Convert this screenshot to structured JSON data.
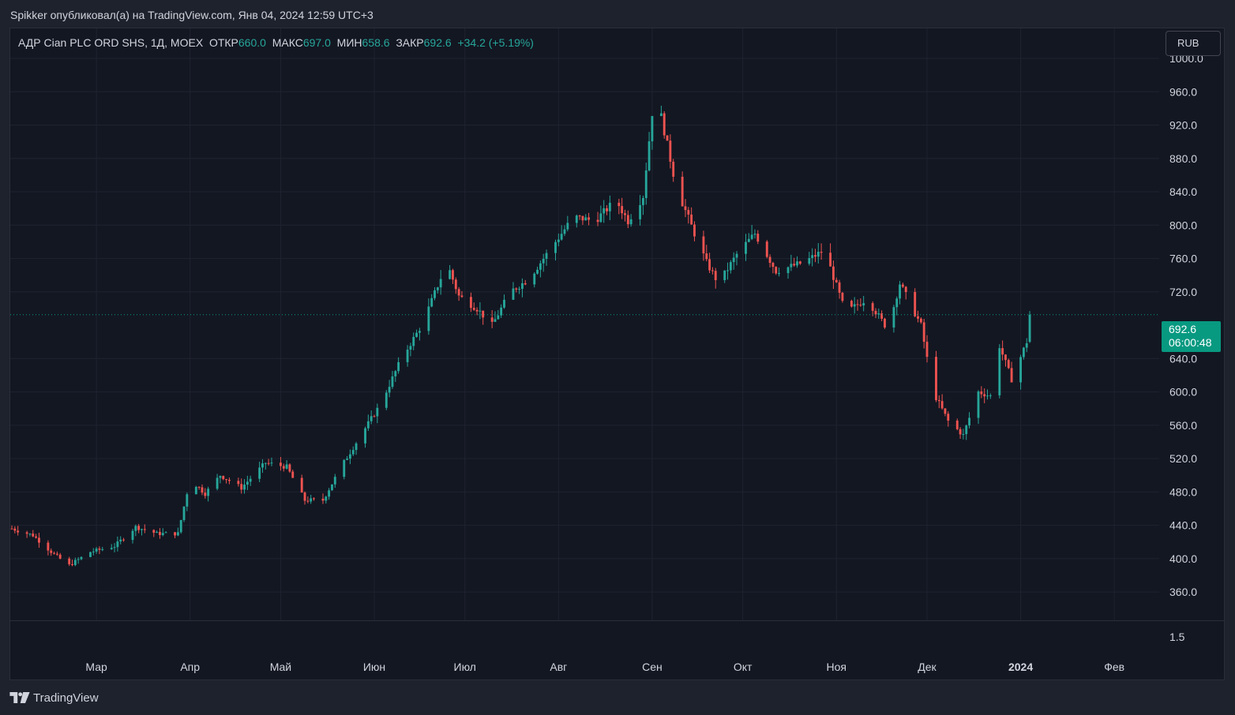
{
  "header": {
    "publish_text": "Spikker опубликовал(а) на TradingView.com, Янв 04, 2024 12:59 UTC+3"
  },
  "legend": {
    "symbol": "АДР Cian PLC ORD SHS, 1Д, MOEX",
    "open_label": "ОТКР",
    "open_value": "660.0",
    "high_label": "МАКС",
    "high_value": "697.0",
    "low_label": "МИН",
    "low_value": "658.6",
    "close_label": "ЗАКР",
    "close_value": "692.6",
    "change": "+34.2 (+5.19%)"
  },
  "currency_button": "RUB",
  "price_tag": {
    "price": "692.6",
    "countdown": "06:00:48"
  },
  "footer": {
    "brand": "TradingView",
    "logo_icon": "tradingview-logo-icon"
  },
  "colors": {
    "up": "#26a69a",
    "down": "#ef5350",
    "background": "#131722",
    "grid": "#1f2330",
    "text": "#d1d4dc",
    "tag": "#089981"
  },
  "chart_data": {
    "type": "candlestick",
    "title": "АДР Cian PLC ORD SHS, 1Д, MOEX",
    "ylim": [
      326,
      1036
    ],
    "y_ticks": [
      "1000.0",
      "960.0",
      "920.0",
      "880.0",
      "840.0",
      "800.0",
      "760.0",
      "720.0",
      "640.0",
      "600.0",
      "560.0",
      "520.0",
      "480.0",
      "440.0",
      "400.0",
      "360.0"
    ],
    "y_tick_values": [
      1000,
      960,
      920,
      880,
      840,
      800,
      760,
      720,
      640,
      600,
      560,
      520,
      480,
      440,
      400,
      360
    ],
    "x_ticks": [
      "Мар",
      "Апр",
      "Май",
      "Июн",
      "Июл",
      "Авг",
      "Сен",
      "Окт",
      "Ноя",
      "Дек",
      "2024",
      "Фев"
    ],
    "x_tick_dates": [
      "2023-03-01",
      "2023-04-01",
      "2023-05-01",
      "2023-06-01",
      "2023-07-01",
      "2023-08-01",
      "2023-09-01",
      "2023-10-01",
      "2023-11-01",
      "2023-12-01",
      "2024-01-01",
      "2024-02-01"
    ],
    "x_range": [
      "2023-02-01",
      "2024-02-19"
    ],
    "last_price": 692.6,
    "volume_pane_tick": "1.5",
    "grid": true,
    "keypoints": [
      [
        "2023-02-01",
        436
      ],
      [
        "2023-02-08",
        428
      ],
      [
        "2023-02-15",
        405
      ],
      [
        "2023-02-20",
        392
      ],
      [
        "2023-02-27",
        408
      ],
      [
        "2023-03-07",
        415
      ],
      [
        "2023-03-14",
        438
      ],
      [
        "2023-03-21",
        430
      ],
      [
        "2023-03-28",
        430
      ],
      [
        "2023-04-01",
        495
      ],
      [
        "2023-04-06",
        478
      ],
      [
        "2023-04-11",
        500
      ],
      [
        "2023-04-18",
        485
      ],
      [
        "2023-04-26",
        515
      ],
      [
        "2023-05-03",
        510
      ],
      [
        "2023-05-09",
        470
      ],
      [
        "2023-05-15",
        470
      ],
      [
        "2023-05-21",
        510
      ],
      [
        "2023-05-27",
        545
      ],
      [
        "2023-06-03",
        585
      ],
      [
        "2023-06-10",
        640
      ],
      [
        "2023-06-17",
        682
      ],
      [
        "2023-06-25",
        755
      ],
      [
        "2023-06-29",
        715
      ],
      [
        "2023-07-05",
        700
      ],
      [
        "2023-07-10",
        680
      ],
      [
        "2023-07-16",
        720
      ],
      [
        "2023-07-22",
        735
      ],
      [
        "2023-07-30",
        775
      ],
      [
        "2023-08-06",
        810
      ],
      [
        "2023-08-13",
        805
      ],
      [
        "2023-08-20",
        830
      ],
      [
        "2023-08-24",
        805
      ],
      [
        "2023-08-29",
        835
      ],
      [
        "2023-09-01",
        935
      ],
      [
        "2023-09-04",
        930
      ],
      [
        "2023-09-09",
        845
      ],
      [
        "2023-09-15",
        790
      ],
      [
        "2023-09-19",
        755
      ],
      [
        "2023-09-23",
        730
      ],
      [
        "2023-09-29",
        765
      ],
      [
        "2023-10-05",
        790
      ],
      [
        "2023-10-12",
        745
      ],
      [
        "2023-10-21",
        755
      ],
      [
        "2023-10-28",
        770
      ],
      [
        "2023-11-04",
        695
      ],
      [
        "2023-11-11",
        712
      ],
      [
        "2023-11-18",
        675
      ],
      [
        "2023-11-22",
        730
      ],
      [
        "2023-11-29",
        680
      ],
      [
        "2023-12-03",
        600
      ],
      [
        "2023-12-08",
        565
      ],
      [
        "2023-12-13",
        548
      ],
      [
        "2023-12-18",
        600
      ],
      [
        "2023-12-22",
        595
      ],
      [
        "2023-12-25",
        655
      ],
      [
        "2023-12-29",
        615
      ],
      [
        "2024-01-03",
        660
      ]
    ],
    "final_candle": {
      "date": "2024-01-04",
      "open": 660.0,
      "high": 697.0,
      "low": 658.6,
      "close": 692.6
    }
  }
}
